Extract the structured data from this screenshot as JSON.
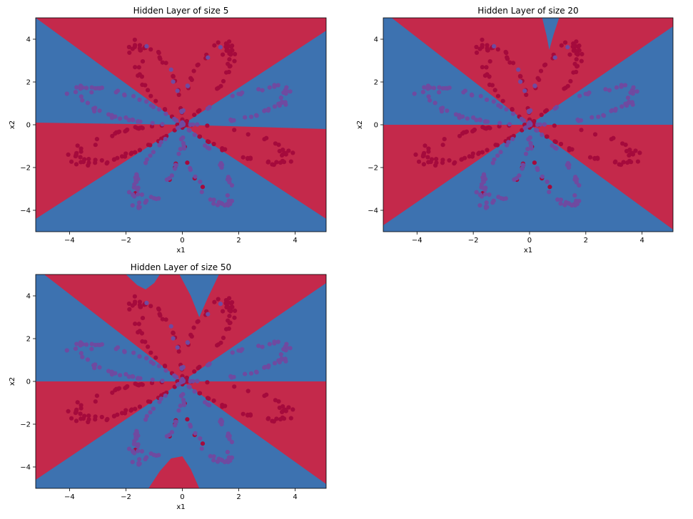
{
  "colors": {
    "class_red": "#c4294b",
    "class_blue": "#3d72b0",
    "point_red": "#a50a3c",
    "point_blue": "#6f4aa0",
    "axis": "#000000"
  },
  "chart_data": [
    {
      "type": "scatter",
      "title": "Hidden Layer of size 5",
      "xlabel": "x1",
      "ylabel": "x2",
      "xlim": [
        -5.2,
        5.1
      ],
      "ylim": [
        -5.0,
        5.0
      ],
      "xticks": [
        -4,
        -2,
        0,
        2,
        4
      ],
      "yticks": [
        -4,
        -2,
        0,
        2,
        4
      ],
      "xtick_labels": [
        "−4",
        "−2",
        "0",
        "2",
        "4"
      ],
      "ytick_labels": [
        "−4",
        "−2",
        "0",
        "2",
        "4"
      ],
      "decision_regions": {
        "red": [
          [
            [
              0,
              0
            ],
            [
              -5.2,
              5.0
            ],
            [
              5.1,
              5.0
            ],
            [
              5.1,
              4.4
            ]
          ],
          [
            [
              0,
              0
            ],
            [
              -5.2,
              0.1
            ],
            [
              -5.2,
              -4.4
            ]
          ],
          [
            [
              0,
              0
            ],
            [
              5.1,
              -0.2
            ],
            [
              5.1,
              -4.4
            ]
          ]
        ]
      },
      "features": {}
    },
    {
      "type": "scatter",
      "title": "Hidden Layer of size 20",
      "xlabel": "x1",
      "ylabel": "x2",
      "xlim": [
        -5.2,
        5.1
      ],
      "ylim": [
        -5.0,
        5.0
      ],
      "xticks": [
        -4,
        -2,
        0,
        2,
        4
      ],
      "yticks": [
        -4,
        -2,
        0,
        2,
        4
      ],
      "xtick_labels": [
        "−4",
        "−2",
        "0",
        "2",
        "4"
      ],
      "ytick_labels": [
        "−4",
        "−2",
        "0",
        "2",
        "4"
      ],
      "decision_regions": {
        "red": [
          [
            [
              0,
              0
            ],
            [
              -4.9,
              5.0
            ],
            [
              5.1,
              5.0
            ],
            [
              5.1,
              4.6
            ]
          ],
          [
            [
              0,
              0
            ],
            [
              -5.2,
              0.0
            ],
            [
              -5.2,
              -4.7
            ]
          ],
          [
            [
              0,
              0
            ],
            [
              5.1,
              0.0
            ],
            [
              5.1,
              -4.9
            ]
          ]
        ]
      },
      "features": {
        "blue_notch_top": [
          [
            0.45,
            5.0
          ],
          [
            0.6,
            4.2
          ],
          [
            0.7,
            3.5
          ],
          [
            0.85,
            4.2
          ],
          [
            1.05,
            5.0
          ]
        ]
      }
    },
    {
      "type": "scatter",
      "title": "Hidden Layer of size 50",
      "xlabel": "x1",
      "ylabel": "x2",
      "xlim": [
        -5.2,
        5.1
      ],
      "ylim": [
        -5.0,
        5.0
      ],
      "xticks": [
        -4,
        -2,
        0,
        2,
        4
      ],
      "yticks": [
        -4,
        -2,
        0,
        2,
        4
      ],
      "xtick_labels": [
        "−4",
        "−2",
        "0",
        "2",
        "4"
      ],
      "ytick_labels": [
        "−4",
        "−2",
        "0",
        "2",
        "4"
      ],
      "decision_regions": {
        "red": [
          [
            [
              0,
              0
            ],
            [
              -4.9,
              5.0
            ],
            [
              5.1,
              5.0
            ],
            [
              5.1,
              4.6
            ]
          ],
          [
            [
              0,
              0
            ],
            [
              -5.2,
              0.0
            ],
            [
              -5.2,
              -4.6
            ]
          ],
          [
            [
              0,
              0
            ],
            [
              5.1,
              0.0
            ],
            [
              5.1,
              -4.8
            ]
          ]
        ]
      },
      "features": {
        "blue_notch_top_left": [
          [
            -2.0,
            5.0
          ],
          [
            -1.6,
            4.5
          ],
          [
            -1.3,
            4.3
          ],
          [
            -1.0,
            4.6
          ],
          [
            -0.8,
            5.0
          ]
        ],
        "blue_notch_top_right": [
          [
            -0.1,
            5.0
          ],
          [
            0.3,
            4.0
          ],
          [
            0.6,
            3.0
          ],
          [
            0.9,
            3.9
          ],
          [
            1.3,
            5.0
          ]
        ],
        "red_bump_bottom": [
          [
            -1.2,
            -5.0
          ],
          [
            -0.8,
            -4.2
          ],
          [
            -0.4,
            -3.6
          ],
          [
            0.0,
            -3.5
          ],
          [
            0.3,
            -4.1
          ],
          [
            0.6,
            -5.0
          ]
        ]
      }
    }
  ]
}
